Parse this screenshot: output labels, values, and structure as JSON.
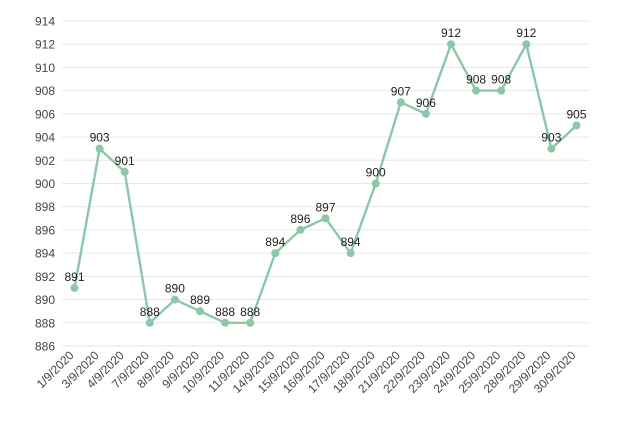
{
  "chart_data": {
    "type": "line",
    "title": "",
    "xlabel": "",
    "ylabel": "",
    "ylim": [
      886,
      914
    ],
    "y_ticks": [
      886,
      888,
      890,
      892,
      894,
      896,
      898,
      900,
      902,
      904,
      906,
      908,
      910,
      912,
      914
    ],
    "grid": true,
    "categories": [
      "1/9/2020",
      "3/9/2020",
      "4/9/2020",
      "7/9/2020",
      "8/9/2020",
      "9/9/2020",
      "10/9/2020",
      "11/9/2020",
      "14/9/2020",
      "15/9/2020",
      "16/9/2020",
      "17/9/2020",
      "18/9/2020",
      "21/9/2020",
      "22/9/2020",
      "23/9/2020",
      "24/9/2020",
      "25/9/2020",
      "28/9/2020",
      "29/9/2020",
      "30/9/2020"
    ],
    "series": [
      {
        "name": "",
        "values": [
          891,
          903,
          901,
          888,
          890,
          889,
          888,
          888,
          894,
          896,
          897,
          894,
          900,
          907,
          906,
          912,
          908,
          908,
          912,
          903,
          905
        ]
      }
    ],
    "colors": {
      "line": "#8cc7a8",
      "marker": "#8cc7a8",
      "grid": "#e6e6e6",
      "text": "#444444",
      "label": "#222222"
    }
  }
}
